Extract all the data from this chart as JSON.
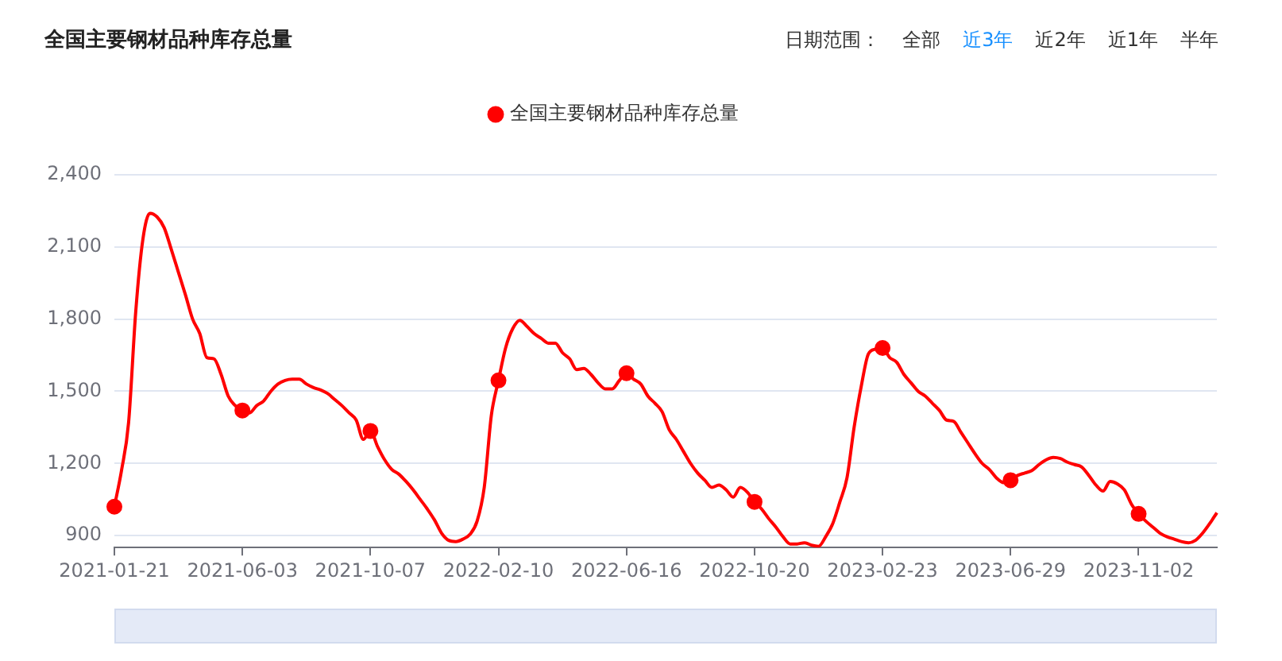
{
  "chart_data": {
    "type": "line",
    "title": "全国主要钢材品种库存总量",
    "annotations": [
      "日期范围：",
      "全部",
      "近3年",
      "近2年",
      "近1年",
      "半年"
    ],
    "categories": [
      "2021-01-21",
      null,
      null,
      null,
      null,
      null,
      null,
      null,
      null,
      null,
      null,
      null,
      null,
      null,
      null,
      null,
      null,
      null,
      "2021-06-03",
      null,
      null,
      null,
      null,
      null,
      null,
      null,
      null,
      null,
      null,
      null,
      null,
      null,
      null,
      null,
      null,
      null,
      "2021-10-07",
      null,
      null,
      null,
      null,
      null,
      null,
      null,
      null,
      null,
      null,
      null,
      null,
      null,
      null,
      null,
      null,
      null,
      "2022-02-10",
      null,
      null,
      null,
      null,
      null,
      null,
      null,
      null,
      null,
      null,
      null,
      null,
      null,
      null,
      null,
      null,
      null,
      "2022-06-16",
      null,
      null,
      null,
      null,
      null,
      null,
      null,
      null,
      null,
      null,
      null,
      null,
      null,
      null,
      null,
      null,
      null,
      "2022-10-20",
      null,
      null,
      null,
      null,
      null,
      null,
      null,
      null,
      null,
      null,
      null,
      null,
      null,
      null,
      null,
      null,
      null,
      "2023-02-23",
      null,
      null,
      null,
      null,
      null,
      null,
      null,
      null,
      null,
      null,
      null,
      null,
      null,
      null,
      null,
      null,
      null,
      "2023-06-29",
      null,
      null,
      null,
      null,
      null,
      null,
      null,
      null,
      null,
      null,
      null,
      null,
      null,
      null,
      null,
      null,
      null,
      "2023-11-02",
      null,
      null,
      null,
      null,
      null,
      null,
      null,
      null,
      null,
      null,
      null
    ],
    "series": [
      {
        "name": "全国主要钢材品种库存总量",
        "color": "#ff0000",
        "values": [
          1020,
          1170,
          1370,
          1830,
          2130,
          2240,
          2225,
          2180,
          2090,
          1995,
          1900,
          1800,
          1740,
          1640,
          1635,
          1570,
          1480,
          1440,
          1420,
          1410,
          1440,
          1460,
          1500,
          1530,
          1545,
          1550,
          1550,
          1530,
          1515,
          1505,
          1490,
          1465,
          1440,
          1410,
          1380,
          1300,
          1335,
          1270,
          1215,
          1175,
          1155,
          1125,
          1090,
          1050,
          1010,
          965,
          910,
          880,
          875,
          885,
          905,
          960,
          1100,
          1400,
          1545,
          1680,
          1760,
          1795,
          1770,
          1740,
          1720,
          1700,
          1700,
          1660,
          1635,
          1590,
          1595,
          1570,
          1535,
          1510,
          1510,
          1545,
          1575,
          1550,
          1530,
          1480,
          1450,
          1415,
          1340,
          1300,
          1250,
          1200,
          1160,
          1130,
          1100,
          1110,
          1090,
          1060,
          1100,
          1080,
          1040,
          1010,
          970,
          935,
          895,
          865,
          865,
          870,
          860,
          855,
          895,
          950,
          1040,
          1140,
          1350,
          1520,
          1655,
          1675,
          1680,
          1640,
          1620,
          1570,
          1535,
          1500,
          1480,
          1450,
          1420,
          1380,
          1375,
          1330,
          1285,
          1240,
          1200,
          1175,
          1140,
          1120,
          1130,
          1150,
          1160,
          1170,
          1195,
          1215,
          1225,
          1220,
          1205,
          1195,
          1185,
          1150,
          1110,
          1085,
          1125,
          1115,
          1090,
          1030,
          990,
          960,
          935,
          910,
          895,
          885,
          875,
          870,
          880,
          910,
          950,
          995
        ]
      }
    ],
    "ylim": [
      850,
      2400
    ],
    "yticks": [
      900,
      {
        "value": 1200,
        "label": "1,200"
      },
      {
        "value": 1500,
        "label": "1,500"
      },
      {
        "value": 1800,
        "label": "1,800"
      },
      {
        "value": 2100,
        "label": "2,100"
      },
      {
        "value": 2400,
        "label": "2,400"
      }
    ],
    "grid": "y",
    "legend": "top"
  }
}
